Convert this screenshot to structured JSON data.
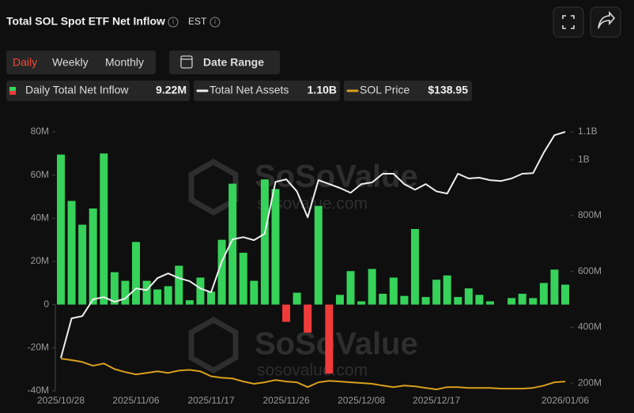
{
  "header": {
    "title": "Total SOL Spot ETF Net Inflow",
    "timezone": "EST"
  },
  "controls": {
    "tabs": [
      "Daily",
      "Weekly",
      "Monthly"
    ],
    "active_tab": "Daily",
    "date_range": "Date Range"
  },
  "watermark": [
    "SoSoValue",
    "sosovalue.com"
  ],
  "chart_data": {
    "type": "bar",
    "categories": [
      "2025/10/28",
      null,
      null,
      null,
      null,
      null,
      null,
      "2025/11/06",
      null,
      null,
      null,
      null,
      null,
      null,
      "2025/11/17",
      null,
      null,
      null,
      null,
      null,
      null,
      "2025/11/26",
      null,
      null,
      null,
      null,
      null,
      null,
      "2025/12/08",
      null,
      null,
      null,
      null,
      null,
      null,
      "2025/12/17",
      null,
      null,
      null,
      null,
      null,
      null,
      null,
      null,
      null,
      null,
      null,
      "2026/01/06"
    ],
    "ylim": [
      -40,
      80
    ],
    "yticks": [
      {
        "value": -40,
        "label": "-40M"
      },
      {
        "value": -20,
        "label": "-20M"
      },
      {
        "value": 0,
        "label": "0"
      },
      {
        "value": 20,
        "label": "20M"
      },
      {
        "value": 40,
        "label": "40M"
      },
      {
        "value": 60,
        "label": "60M"
      },
      {
        "value": 80,
        "label": "80M"
      }
    ],
    "y2lim": [
      172,
      1100
    ],
    "y2ticks": [
      {
        "value": 200,
        "label": "200M"
      },
      {
        "value": 400,
        "label": "400M"
      },
      {
        "value": 600,
        "label": "600M"
      },
      {
        "value": 800,
        "label": "800M"
      },
      {
        "value": 1000,
        "label": "1B"
      },
      {
        "value": 1100,
        "label": "1.1B"
      }
    ],
    "y3lim": [
      114,
      804
    ],
    "grid": false,
    "series": [
      {
        "name": "Daily Total Net Inflow",
        "latest_label": "9.22M",
        "type": "bar",
        "axis": "y",
        "color": "#36d25a",
        "negative_color": "#f03b3b",
        "values": [
          69.5,
          48,
          37,
          44.5,
          70,
          15,
          11,
          29,
          11,
          7,
          8.5,
          18,
          2,
          12.5,
          6,
          30,
          56,
          24,
          11,
          58,
          53.5,
          -8,
          5.5,
          -13,
          45.7,
          -32,
          4.5,
          15.5,
          1.5,
          16.5,
          5,
          12.5,
          4,
          35,
          3.5,
          11.5,
          13.5,
          3.5,
          7.5,
          4.5,
          1.5,
          0,
          3,
          5,
          3,
          10,
          16.2,
          9.22
        ]
      },
      {
        "name": "Total Net Assets",
        "latest_label": "1.10B",
        "type": "line",
        "axis": "y2",
        "color": "#eeeeee",
        "values": [
          290,
          432,
          440,
          500,
          508,
          491,
          503,
          539,
          533,
          576,
          593,
          576,
          565,
          539,
          525,
          636,
          715,
          723,
          712,
          735,
          921,
          930,
          887,
          794,
          927,
          913,
          899,
          882,
          913,
          919,
          950,
          950,
          913,
          893,
          913,
          887,
          879,
          950,
          933,
          936,
          927,
          924,
          933,
          950,
          952,
          1026,
          1088,
          1100
        ]
      },
      {
        "name": "SOL Price",
        "latest_label": "$138.95",
        "type": "line",
        "axis": "y3",
        "color": "#d9a01c",
        "values": [
          200,
          196,
          191,
          181,
          187,
          172,
          164,
          158,
          162,
          166,
          162,
          168,
          170,
          166,
          153,
          149,
          147,
          139,
          133,
          137,
          143,
          139,
          137,
          124,
          137,
          141,
          139,
          137,
          135,
          133,
          128,
          124,
          128,
          126,
          122,
          118,
          124,
          124,
          122,
          122,
          122,
          120,
          120,
          120,
          122,
          128,
          137,
          138.95
        ]
      }
    ]
  }
}
